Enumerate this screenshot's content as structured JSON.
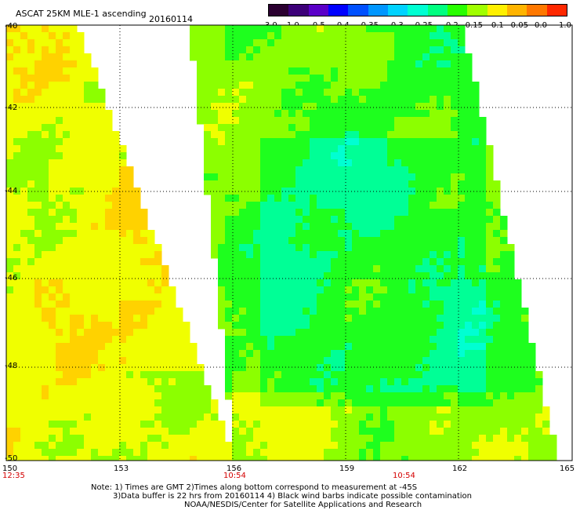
{
  "header": {
    "title": "ASCAT 25KM MLE-1 ascending",
    "date": "20160114"
  },
  "colorbar": {
    "labels": [
      "-3.0",
      "-1.0",
      "-0.5",
      "-0.4",
      "-0.35",
      "-0.3",
      "-0.25",
      "-0.2",
      "-0.15",
      "-0.1",
      "-0.05",
      "0.0",
      "1.0"
    ],
    "colors": [
      "#2a0030",
      "#3c0078",
      "#5a00c8",
      "#0000ff",
      "#0050ff",
      "#0096ff",
      "#00d2ff",
      "#00ffd2",
      "#00ff80",
      "#28ff00",
      "#a0ff00",
      "#fff000",
      "#ffb400",
      "#ff7800",
      "#ff2800"
    ]
  },
  "map": {
    "lat_labels": [
      "-40",
      "-42",
      "-44",
      "-46",
      "-48",
      "-50"
    ],
    "lon_labels": [
      "150",
      "153",
      "156",
      "159",
      "162",
      "165"
    ],
    "time_labels": [
      "12:35",
      "10:54",
      "10:54"
    ]
  },
  "notes": {
    "line1": "Note: 1) Times are GMT 2)Times along bottom correspond to measurement at -45S",
    "line2": "3)Data buffer is 22 hrs from 20160114 4) Black wind barbs indicate possible contamination",
    "line3": "NOAA/NESDIS/Center for Satellite Applications and Research"
  },
  "palette": {
    "cyan": "#00ffd2",
    "teal_green": "#00ff96",
    "green": "#1eff1e",
    "lime": "#8cff00",
    "yellow": "#f0ff00",
    "gold": "#ffd200",
    "orange": "#ffa000",
    "dark_orange": "#ff7800"
  }
}
